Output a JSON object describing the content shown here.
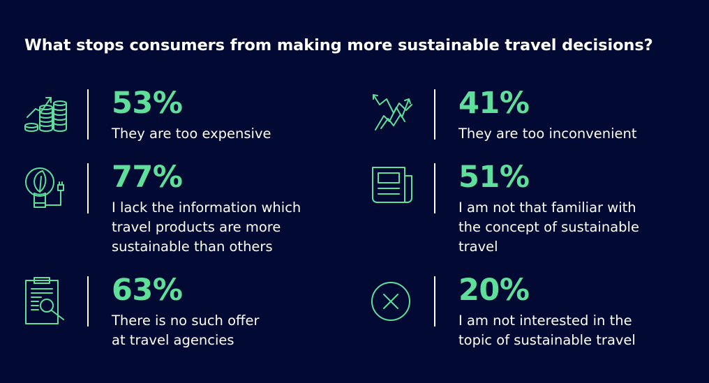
{
  "title": "What stops consumers from making more sustainable travel decisions?",
  "colors": {
    "background": "#020a33",
    "accent": "#5ee09b",
    "text": "#ffffff"
  },
  "stats": [
    {
      "icon": "coins-growth-icon",
      "percent": "53%",
      "lines": [
        "They are too expensive"
      ]
    },
    {
      "icon": "zigzag-arrows-icon",
      "percent": "41%",
      "lines": [
        "They are too inconvenient"
      ]
    },
    {
      "icon": "eco-bulb-icon",
      "percent": "77%",
      "lines": [
        "I lack the information which",
        "travel products are more",
        "sustainable than others"
      ]
    },
    {
      "icon": "newspaper-icon",
      "percent": "51%",
      "lines": [
        "I am not that familiar with",
        "the concept of sustainable",
        "travel"
      ]
    },
    {
      "icon": "clipboard-search-icon",
      "percent": "63%",
      "lines": [
        "There is no such offer",
        "at travel agencies"
      ]
    },
    {
      "icon": "x-circle-icon",
      "percent": "20%",
      "lines": [
        "I am not interested in the",
        "topic of sustainable travel"
      ]
    }
  ]
}
